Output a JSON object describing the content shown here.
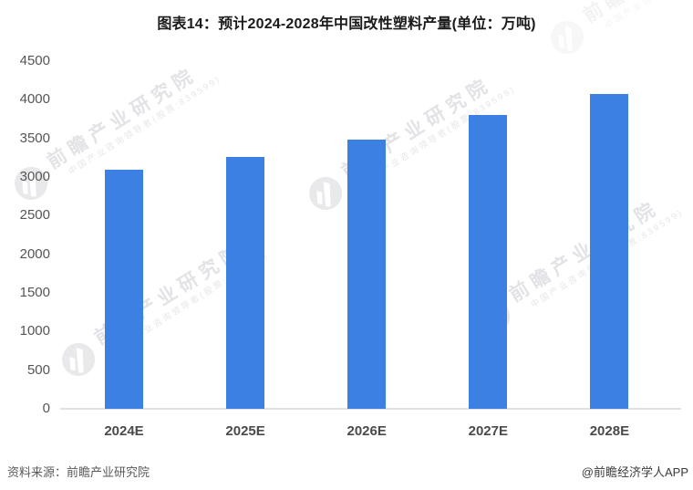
{
  "title": "图表14：预计2024-2028年中国改性塑料产量(单位：万吨)",
  "chart_data": {
    "type": "bar",
    "title": "预计2024-2028年中国改性塑料产量",
    "unit": "万吨",
    "categories": [
      "2024E",
      "2025E",
      "2026E",
      "2027E",
      "2028E"
    ],
    "values": [
      3090,
      3260,
      3490,
      3800,
      4080
    ],
    "xlabel": "",
    "ylabel": "",
    "ylim": [
      0,
      4500
    ],
    "ytick_step": 500,
    "yticks": [
      4500,
      4000,
      3500,
      3000,
      2500,
      2000,
      1500,
      1000,
      500,
      0
    ],
    "grid": false,
    "legend": "none",
    "bar_color": "#3C80E3",
    "axis_line_color": "#e1e1e1"
  },
  "footer": {
    "source": "资料来源：前瞻产业研究院",
    "brand": "@前瞻经济学人APP"
  },
  "watermark": {
    "text": "前瞻产业研究院",
    "subtext": "中国产业咨询领导者(股票:839599)"
  }
}
